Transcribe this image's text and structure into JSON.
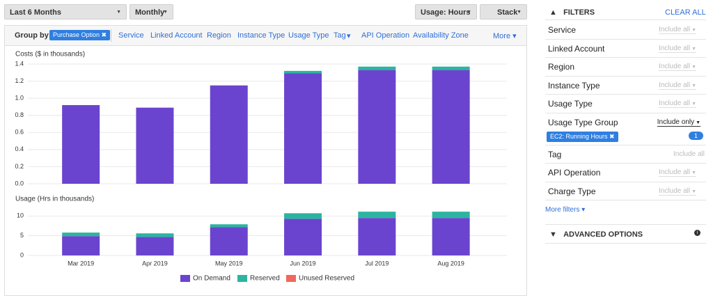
{
  "toolbar": {
    "time_range": "Last 6 Months",
    "granularity": "Monthly",
    "usage_selector": "Usage: Hours",
    "view": "Stack"
  },
  "group_by": {
    "label": "Group by:",
    "selected": "Purchase Option",
    "options": [
      "Service",
      "Linked Account",
      "Region",
      "Instance Type",
      "Usage Type",
      "Tag",
      "API Operation",
      "Availability Zone"
    ],
    "more": "More"
  },
  "filters": {
    "title": "FILTERS",
    "clear": "CLEAR ALL",
    "rows": [
      {
        "name": "Service",
        "setting": "Include all"
      },
      {
        "name": "Linked Account",
        "setting": "Include all"
      },
      {
        "name": "Region",
        "setting": "Include all"
      },
      {
        "name": "Instance Type",
        "setting": "Include all"
      },
      {
        "name": "Usage Type",
        "setting": "Include all"
      },
      {
        "name": "Usage Type Group",
        "setting": "Include only",
        "chip": "EC2: Running Hours",
        "count": 1
      },
      {
        "name": "Tag",
        "setting": "Include all"
      },
      {
        "name": "API Operation",
        "setting": "Include all"
      },
      {
        "name": "Charge Type",
        "setting": "Include all"
      }
    ],
    "more": "More filters",
    "advanced": "ADVANCED OPTIONS"
  },
  "chart_data": [
    {
      "type": "bar",
      "stacked": true,
      "y_label": "Costs ($ in thousands)",
      "grid": true,
      "ylim": [
        0,
        1.4
      ],
      "yticks": [
        {
          "value": 0,
          "label": "0.0"
        },
        0.2,
        0.4,
        0.6,
        0.8,
        {
          "value": 1,
          "label": "1.0"
        },
        1.2,
        1.4
      ],
      "series": [
        {
          "name": "On Demand",
          "color": "#6a44cf",
          "values": [
            0.92,
            0.89,
            1.15,
            1.29,
            1.33,
            1.33
          ]
        },
        {
          "name": "Reserved",
          "color": "#2bb5a0",
          "values": [
            0,
            0,
            0,
            0.03,
            0.04,
            0.04
          ]
        },
        {
          "name": "Unused Reserved",
          "color": "#f2675c",
          "values": [
            0,
            0,
            0,
            0,
            0,
            0
          ]
        }
      ]
    },
    {
      "type": "bar",
      "stacked": true,
      "y_label": "Usage (Hrs in thousands)",
      "grid": true,
      "categories": [
        "Mar 2019",
        "Apr 2019",
        "May 2019",
        "Jun 2019",
        "Jul 2019",
        "Aug 2019"
      ],
      "ylim": [
        0,
        12
      ],
      "yticks": [
        0,
        5,
        10
      ],
      "series": [
        {
          "color": "#6a44cf",
          "values": [
            4.9,
            4.7,
            7.2,
            9.3,
            9.5,
            9.5
          ]
        },
        {
          "color": "#2bb5a0",
          "values": [
            0.9,
            0.9,
            0.7,
            1.4,
            1.6,
            1.6
          ]
        },
        {
          "color": "#f2675c",
          "values": [
            0,
            0,
            0,
            0,
            0,
            0
          ]
        }
      ]
    }
  ]
}
